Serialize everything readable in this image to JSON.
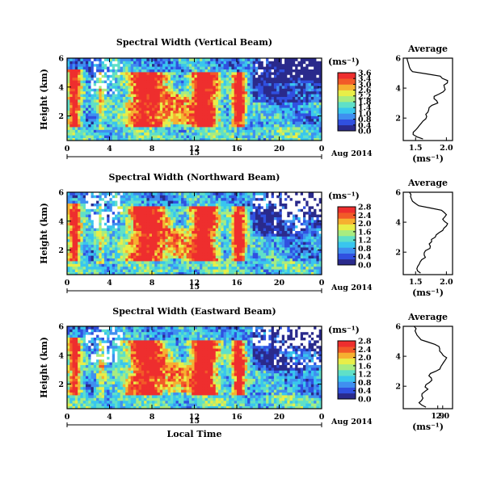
{
  "colors": {
    "colormap": [
      "#2a2a8c",
      "#3050e0",
      "#3f8ff0",
      "#39c6ee",
      "#5fe0c8",
      "#a8ec80",
      "#e8ee48",
      "#f6b030",
      "#f25a28",
      "#ee2e2e"
    ],
    "missing": "#ffffff",
    "line": "#000000"
  },
  "chart_data": [
    {
      "type": "heatmap",
      "title": "Spectral Width (Vertical Beam)",
      "ylabel": "Height (km)",
      "xlabel": "",
      "x_ticks": [
        "0",
        "4",
        "8",
        "12",
        "16",
        "20",
        "0"
      ],
      "y_ticks": [
        "2",
        "4",
        "6"
      ],
      "xlim": [
        0,
        24
      ],
      "ylim": [
        0.3,
        6
      ],
      "date_day": "15",
      "date_label": "Aug 2014",
      "colorbar": {
        "unit": "(ms⁻¹)",
        "ticks": [
          "3.6",
          "3.4",
          "3.0",
          "2.6",
          "2.2",
          "1.8",
          "1.4",
          "1.0",
          "0.8",
          "0.4",
          "0.0"
        ],
        "range": [
          0,
          3.6
        ]
      },
      "profile": {
        "title": "Average",
        "xlabel": "(ms⁻¹)",
        "x_ticks": [
          "1.5",
          "2.0"
        ],
        "xlim": [
          1.3,
          2.1
        ],
        "y_ticks": [
          "2",
          "4",
          "6"
        ],
        "ylim": [
          0.5,
          6
        ],
        "heights": [
          0.6,
          0.9,
          1.2,
          1.5,
          1.8,
          2.1,
          2.4,
          2.7,
          3.0,
          3.3,
          3.6,
          3.9,
          4.2,
          4.5,
          4.8,
          5.1,
          5.4,
          5.7,
          6.0
        ],
        "values": [
          1.62,
          1.46,
          1.5,
          1.56,
          1.62,
          1.68,
          1.7,
          1.72,
          1.86,
          1.8,
          1.88,
          1.98,
          1.96,
          2.02,
          1.9,
          1.45,
          1.4,
          1.38,
          1.36
        ]
      }
    },
    {
      "type": "heatmap",
      "title": "Spectral Width (Northward Beam)",
      "ylabel": "Height (km)",
      "xlabel": "",
      "x_ticks": [
        "0",
        "4",
        "8",
        "12",
        "16",
        "20",
        "0"
      ],
      "y_ticks": [
        "2",
        "4",
        "6"
      ],
      "xlim": [
        0,
        24
      ],
      "ylim": [
        0.3,
        6
      ],
      "date_day": "15",
      "date_label": "Aug 2014",
      "colorbar": {
        "unit": "(ms⁻¹)",
        "ticks": [
          "2.8",
          "2.4",
          "2.0",
          "1.6",
          "1.2",
          "0.8",
          "0.4",
          "0.0"
        ],
        "range": [
          0,
          2.8
        ]
      },
      "profile": {
        "title": "Average",
        "xlabel": "(ms⁻¹)",
        "x_ticks": [
          "1.5",
          "2.0"
        ],
        "xlim": [
          1.3,
          2.1
        ],
        "y_ticks": [
          "2",
          "4",
          "6"
        ],
        "ylim": [
          0.5,
          6
        ],
        "heights": [
          0.6,
          0.9,
          1.2,
          1.5,
          1.8,
          2.1,
          2.4,
          2.7,
          3.0,
          3.3,
          3.6,
          3.9,
          4.2,
          4.5,
          4.8,
          5.1,
          5.4,
          5.7,
          6.0
        ],
        "values": [
          1.58,
          1.52,
          1.56,
          1.6,
          1.64,
          1.66,
          1.74,
          1.76,
          1.82,
          1.88,
          1.96,
          2.02,
          1.94,
          2.0,
          1.92,
          1.55,
          1.45,
          1.42,
          1.4
        ]
      }
    },
    {
      "type": "heatmap",
      "title": "Spectral Width (Eastward Beam)",
      "ylabel": "Height (km)",
      "xlabel": "Local Time",
      "x_ticks": [
        "0",
        "4",
        "8",
        "12",
        "16",
        "20",
        "0"
      ],
      "y_ticks": [
        "2",
        "4",
        "6"
      ],
      "xlim": [
        0,
        24
      ],
      "ylim": [
        0.3,
        6
      ],
      "date_day": "15",
      "date_label": "Aug 2014",
      "colorbar": {
        "unit": "(ms⁻¹)",
        "ticks": [
          "2.8",
          "2.4",
          "2.0",
          "1.6",
          "1.2",
          "0.8",
          "0.4",
          "0.0"
        ],
        "range": [
          0,
          2.8
        ]
      },
      "profile": {
        "title": "Average",
        "xlabel": "(ms⁻¹)",
        "x_ticks": [
          "1.9",
          "2.0"
        ],
        "xlim": [
          1.2,
          2.2
        ],
        "y_ticks": [
          "2",
          "4",
          "6"
        ],
        "ylim": [
          0.5,
          6
        ],
        "heights": [
          0.6,
          0.9,
          1.2,
          1.5,
          1.8,
          2.1,
          2.4,
          2.7,
          3.0,
          3.3,
          3.6,
          3.9,
          4.2,
          4.5,
          4.8,
          5.1,
          5.4,
          5.7,
          6.0
        ],
        "values": [
          1.66,
          1.52,
          1.6,
          1.58,
          1.7,
          1.66,
          1.78,
          1.72,
          1.86,
          1.96,
          2.02,
          2.08,
          1.98,
          1.94,
          1.84,
          1.56,
          1.48,
          1.44,
          1.42
        ]
      }
    }
  ]
}
